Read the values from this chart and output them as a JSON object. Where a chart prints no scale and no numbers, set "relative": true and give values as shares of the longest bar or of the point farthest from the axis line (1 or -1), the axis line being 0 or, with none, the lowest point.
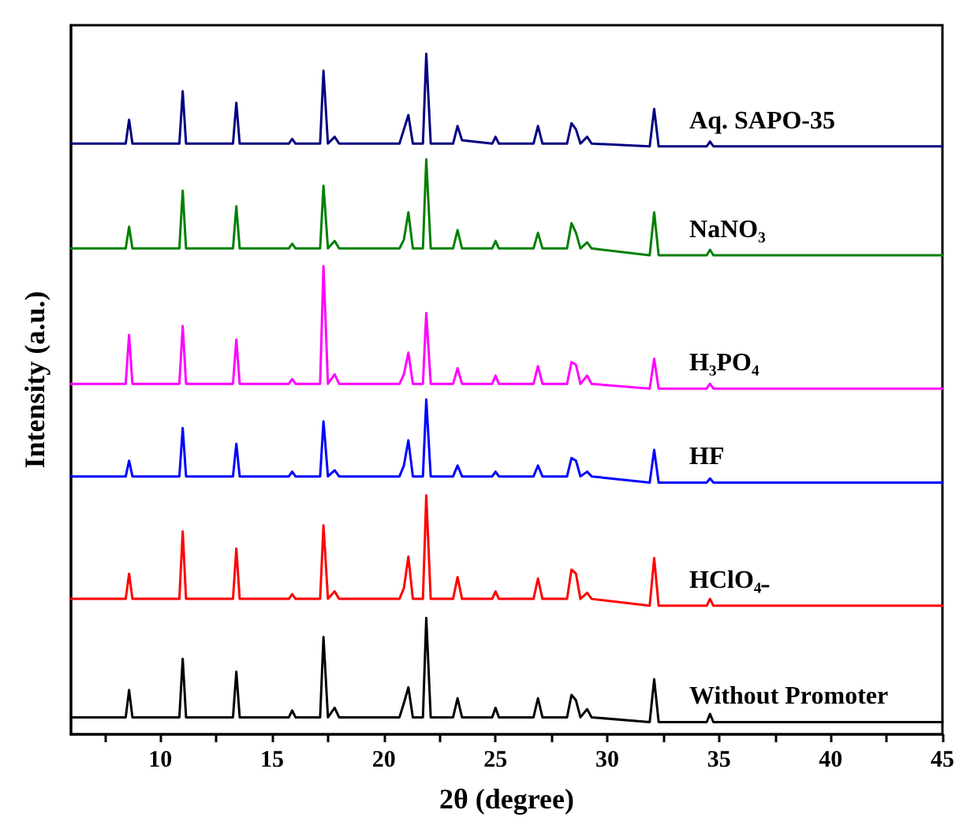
{
  "chart_data": {
    "type": "line",
    "relative": true,
    "xlabel": "2θ (degree)",
    "ylabel": "Intensity (a.u.)",
    "xlim": [
      6,
      45
    ],
    "xticks": [
      {
        "value": 7.5,
        "label": null
      },
      10,
      {
        "value": 12.5,
        "label": null
      },
      15,
      {
        "value": 17.5,
        "label": null
      },
      20,
      {
        "value": 22.5,
        "label": null
      },
      25,
      {
        "value": 27.5,
        "label": null
      },
      30,
      {
        "value": 32.5,
        "label": null
      },
      35,
      {
        "value": 37.5,
        "label": null
      },
      40,
      {
        "value": 42.5,
        "label": null
      },
      45
    ],
    "grid": false,
    "legend": false,
    "marker": "none",
    "line_style": "solid",
    "x": [
      6.0,
      8.45,
      8.6,
      8.75,
      10.85,
      11.0,
      11.15,
      13.25,
      13.4,
      13.55,
      15.75,
      15.9,
      16.05,
      17.15,
      17.3,
      17.5,
      17.8,
      18.0,
      20.7,
      20.9,
      21.1,
      21.3,
      21.75,
      21.9,
      22.1,
      23.1,
      23.3,
      23.5,
      24.85,
      25.0,
      25.15,
      26.7,
      26.9,
      27.1,
      28.2,
      28.4,
      28.6,
      28.8,
      29.1,
      29.3,
      31.9,
      32.1,
      32.3,
      34.45,
      34.6,
      34.75,
      45.0
    ],
    "series": [
      {
        "name": "Aq. SAPO-35",
        "color": "#000080",
        "values": [
          0.868,
          0.868,
          0.903,
          0.868,
          0.868,
          0.945,
          0.868,
          0.868,
          0.928,
          0.868,
          0.868,
          0.875,
          0.868,
          0.868,
          0.975,
          0.868,
          0.878,
          0.868,
          0.868,
          0.889,
          0.91,
          0.868,
          0.868,
          1.0,
          0.868,
          0.868,
          0.894,
          0.873,
          0.868,
          0.878,
          0.868,
          0.868,
          0.894,
          0.868,
          0.868,
          0.898,
          0.889,
          0.868,
          0.878,
          0.868,
          0.864,
          0.919,
          0.864,
          0.864,
          0.871,
          0.864,
          0.864
        ]
      },
      {
        "name": "NaNO₃",
        "color": "#008000",
        "values": [
          0.714,
          0.714,
          0.746,
          0.714,
          0.714,
          0.799,
          0.714,
          0.714,
          0.776,
          0.714,
          0.714,
          0.721,
          0.714,
          0.714,
          0.806,
          0.714,
          0.725,
          0.714,
          0.714,
          0.727,
          0.767,
          0.714,
          0.714,
          0.845,
          0.714,
          0.714,
          0.741,
          0.714,
          0.714,
          0.725,
          0.714,
          0.714,
          0.737,
          0.714,
          0.714,
          0.751,
          0.737,
          0.714,
          0.723,
          0.714,
          0.704,
          0.767,
          0.704,
          0.704,
          0.712,
          0.704,
          0.704
        ]
      },
      {
        "name": "H₃PO₄",
        "color": "#ff00ff",
        "values": [
          0.515,
          0.515,
          0.587,
          0.515,
          0.515,
          0.6,
          0.515,
          0.515,
          0.58,
          0.515,
          0.515,
          0.522,
          0.515,
          0.515,
          0.688,
          0.515,
          0.529,
          0.515,
          0.515,
          0.529,
          0.561,
          0.515,
          0.515,
          0.619,
          0.515,
          0.515,
          0.538,
          0.515,
          0.515,
          0.527,
          0.515,
          0.515,
          0.541,
          0.515,
          0.515,
          0.547,
          0.543,
          0.515,
          0.527,
          0.515,
          0.508,
          0.552,
          0.508,
          0.508,
          0.515,
          0.508,
          0.508
        ]
      },
      {
        "name": "HF",
        "color": "#0000ff",
        "values": [
          0.379,
          0.379,
          0.402,
          0.379,
          0.379,
          0.45,
          0.379,
          0.379,
          0.427,
          0.379,
          0.379,
          0.386,
          0.379,
          0.379,
          0.46,
          0.379,
          0.388,
          0.379,
          0.379,
          0.395,
          0.432,
          0.379,
          0.379,
          0.492,
          0.379,
          0.379,
          0.395,
          0.379,
          0.379,
          0.386,
          0.379,
          0.379,
          0.395,
          0.379,
          0.379,
          0.406,
          0.402,
          0.379,
          0.386,
          0.379,
          0.37,
          0.418,
          0.37,
          0.37,
          0.376,
          0.37,
          0.37
        ]
      },
      {
        "name": "HClO₄₋",
        "color": "#ff0000",
        "values": [
          0.199,
          0.199,
          0.236,
          0.199,
          0.199,
          0.298,
          0.199,
          0.199,
          0.273,
          0.199,
          0.199,
          0.206,
          0.199,
          0.199,
          0.307,
          0.199,
          0.21,
          0.199,
          0.199,
          0.215,
          0.261,
          0.199,
          0.199,
          0.351,
          0.199,
          0.199,
          0.231,
          0.199,
          0.199,
          0.21,
          0.199,
          0.199,
          0.229,
          0.199,
          0.199,
          0.242,
          0.236,
          0.199,
          0.208,
          0.199,
          0.189,
          0.259,
          0.189,
          0.189,
          0.199,
          0.189,
          0.189
        ]
      },
      {
        "name": "Without Promoter",
        "color": "#000000",
        "values": [
          0.025,
          0.025,
          0.065,
          0.025,
          0.025,
          0.111,
          0.025,
          0.025,
          0.092,
          0.025,
          0.025,
          0.035,
          0.025,
          0.025,
          0.143,
          0.025,
          0.039,
          0.025,
          0.025,
          0.046,
          0.069,
          0.025,
          0.025,
          0.171,
          0.025,
          0.025,
          0.053,
          0.025,
          0.025,
          0.039,
          0.025,
          0.025,
          0.053,
          0.025,
          0.025,
          0.058,
          0.05,
          0.025,
          0.037,
          0.025,
          0.018,
          0.081,
          0.018,
          0.018,
          0.03,
          0.018,
          0.018
        ]
      }
    ]
  }
}
